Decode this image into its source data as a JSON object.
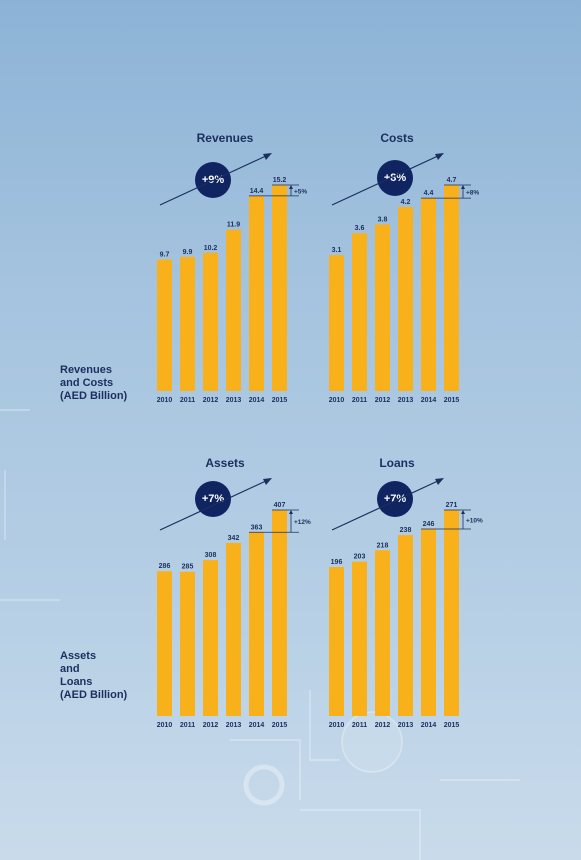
{
  "sections": [
    {
      "label_lines": [
        "Revenues",
        "and Costs",
        "(AED Billion)"
      ]
    },
    {
      "label_lines": [
        "Assets",
        "and",
        "Loans",
        "(AED Billion)"
      ]
    }
  ],
  "chart_data": [
    {
      "type": "bar",
      "title": "Revenues",
      "growth": "+9%",
      "increase_label": "+5%",
      "categories": [
        "2010",
        "2011",
        "2012",
        "2013",
        "2014",
        "2015"
      ],
      "values": [
        9.7,
        9.9,
        10.2,
        11.9,
        14.4,
        15.2
      ],
      "value_labels": [
        "9.7",
        "9.9",
        "10.2",
        "11.9",
        "14.4",
        "15.2"
      ],
      "ylim": [
        0,
        15.2
      ],
      "bar_color": "#f9b11b"
    },
    {
      "type": "bar",
      "title": "Costs",
      "growth": "+8%",
      "increase_label": "+8%",
      "categories": [
        "2010",
        "2011",
        "2012",
        "2013",
        "2014",
        "2015"
      ],
      "values": [
        3.1,
        3.6,
        3.8,
        4.2,
        4.4,
        4.7
      ],
      "value_labels": [
        "3.1",
        "3.6",
        "3.8",
        "4.2",
        "4.4",
        "4.7"
      ],
      "ylim": [
        0,
        4.7
      ],
      "bar_color": "#f9b11b"
    },
    {
      "type": "bar",
      "title": "Assets",
      "growth": "+7%",
      "increase_label": "+12%",
      "categories": [
        "2010",
        "2011",
        "2012",
        "2013",
        "2014",
        "2015"
      ],
      "values": [
        286,
        285,
        308,
        342,
        363,
        407
      ],
      "value_labels": [
        "286",
        "285",
        "308",
        "342",
        "363",
        "407"
      ],
      "ylim": [
        0,
        407
      ],
      "bar_color": "#f9b11b"
    },
    {
      "type": "bar",
      "title": "Loans",
      "growth": "+7%",
      "increase_label": "+10%",
      "categories": [
        "2010",
        "2011",
        "2012",
        "2013",
        "2014",
        "2015"
      ],
      "values": [
        196,
        203,
        218,
        238,
        246,
        271
      ],
      "value_labels": [
        "196",
        "203",
        "218",
        "238",
        "246",
        "271"
      ],
      "ylim": [
        0,
        271
      ],
      "bar_color": "#f9b11b"
    }
  ]
}
